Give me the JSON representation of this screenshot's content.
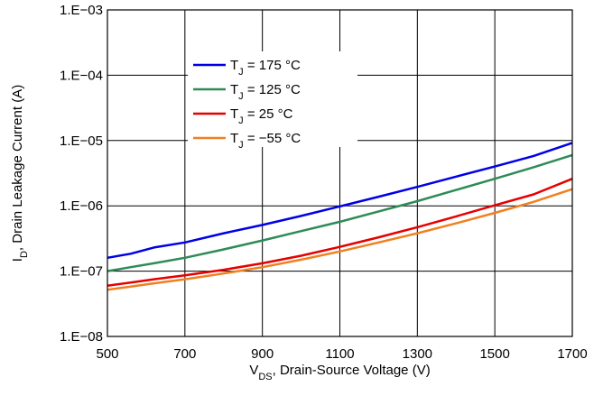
{
  "chart_data": {
    "type": "line",
    "title": "",
    "xlabel": {
      "main": "V",
      "sub": "DS",
      "rest": ", Drain-Source Voltage (V)"
    },
    "ylabel": {
      "main": "I",
      "sub": "D",
      "rest": ", Drain Leakage Current (A)"
    },
    "x_scale": "linear",
    "y_scale": "log",
    "xlim": [
      500,
      1700
    ],
    "ylim": [
      1e-08,
      0.001
    ],
    "x_ticks": [
      500,
      700,
      900,
      1100,
      1300,
      1500,
      1700
    ],
    "x_tick_labels": [
      "500",
      "700",
      "900",
      "1100",
      "1300",
      "1500",
      "1700"
    ],
    "y_ticks": [
      1e-08,
      1e-07,
      1e-06,
      1e-05,
      0.0001,
      0.001
    ],
    "y_tick_labels": [
      "1.E−08",
      "1.E−07",
      "1.E−06",
      "1.E−05",
      "1.E−04",
      "1.E−03"
    ],
    "grid": true,
    "legend_position": "upper-center",
    "series": [
      {
        "name": {
          "main": "T",
          "sub": "J",
          "rest": " = 175 °C"
        },
        "color": "#0000e6",
        "x": [
          500,
          560,
          620,
          700,
          800,
          900,
          1000,
          1100,
          1200,
          1300,
          1400,
          1500,
          1600,
          1700
        ],
        "y": [
          1.6e-07,
          1.85e-07,
          2.3e-07,
          2.75e-07,
          3.8e-07,
          5.1e-07,
          7e-07,
          9.8e-07,
          1.38e-06,
          1.95e-06,
          2.8e-06,
          4e-06,
          5.8e-06,
          9.2e-06
        ]
      },
      {
        "name": {
          "main": "T",
          "sub": "J",
          "rest": " = 125 °C"
        },
        "color": "#2e8b57",
        "x": [
          500,
          560,
          620,
          700,
          800,
          900,
          1000,
          1100,
          1200,
          1300,
          1400,
          1500,
          1600,
          1700
        ],
        "y": [
          1e-07,
          1.15e-07,
          1.32e-07,
          1.6e-07,
          2.15e-07,
          2.95e-07,
          4.1e-07,
          5.7e-07,
          8.2e-07,
          1.18e-06,
          1.75e-06,
          2.6e-06,
          3.9e-06,
          6e-06
        ]
      },
      {
        "name": {
          "main": "T",
          "sub": "J",
          "rest": " = 25 °C"
        },
        "color": "#e60000",
        "x": [
          500,
          560,
          620,
          700,
          800,
          900,
          1000,
          1100,
          1200,
          1300,
          1400,
          1500,
          1600,
          1700
        ],
        "y": [
          6e-08,
          6.7e-08,
          7.5e-08,
          8.6e-08,
          1.05e-07,
          1.32e-07,
          1.72e-07,
          2.35e-07,
          3.3e-07,
          4.7e-07,
          6.9e-07,
          1.02e-06,
          1.5e-06,
          2.6e-06
        ]
      },
      {
        "name": {
          "main": "T",
          "sub": "J",
          "rest": " = −55 °C"
        },
        "color": "#f08020",
        "x": [
          500,
          560,
          620,
          700,
          800,
          900,
          1000,
          1100,
          1200,
          1300,
          1400,
          1500,
          1600,
          1700
        ],
        "y": [
          5.2e-08,
          5.8e-08,
          6.5e-08,
          7.5e-08,
          9.2e-08,
          1.15e-07,
          1.5e-07,
          2e-07,
          2.75e-07,
          3.8e-07,
          5.4e-07,
          7.8e-07,
          1.15e-06,
          1.8e-06
        ]
      }
    ]
  }
}
